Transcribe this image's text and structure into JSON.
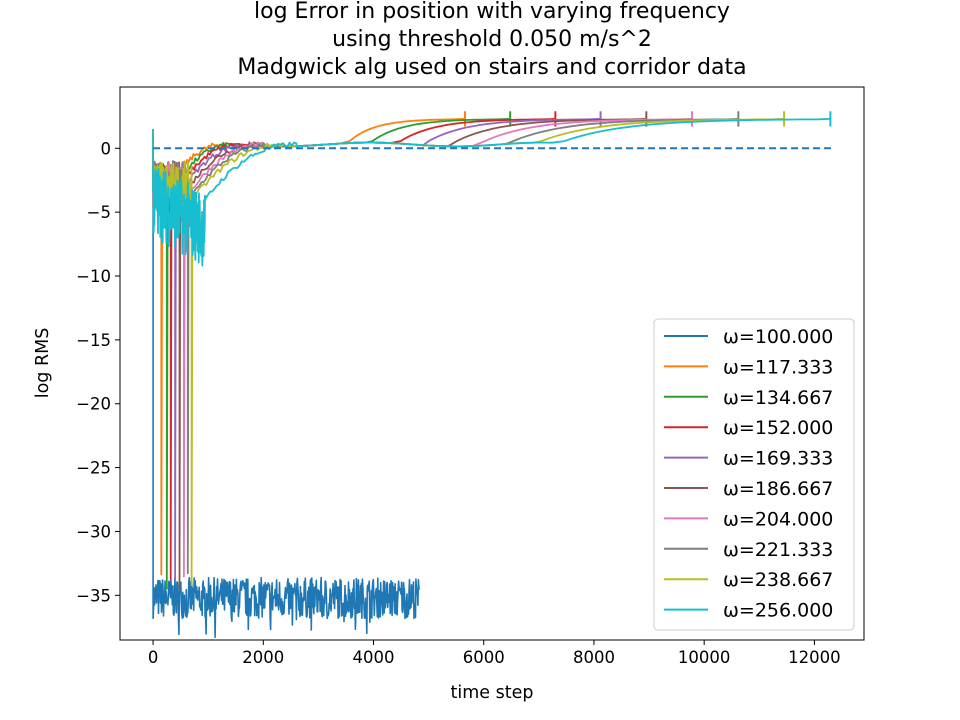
{
  "chart_data": {
    "type": "line",
    "title": [
      "log Error in position with varying frequency",
      "using threshold 0.050 m/s^2",
      "Madgwick alg used on stairs and corridor data"
    ],
    "xlabel": "time step",
    "ylabel": "log RMS",
    "xlim": [
      -600,
      12900
    ],
    "ylim": [
      -38.5,
      4.8
    ],
    "xticks": [
      0,
      2000,
      4000,
      6000,
      8000,
      10000,
      12000
    ],
    "xtick_labels": [
      "0",
      "2000",
      "4000",
      "6000",
      "8000",
      "10000",
      "12000"
    ],
    "yticks": [
      0,
      -5,
      -10,
      -15,
      -20,
      -25,
      -30,
      -35
    ],
    "ytick_labels": [
      "0",
      "−5",
      "−10",
      "−15",
      "−20",
      "−25",
      "−30",
      "−35"
    ],
    "grid": false,
    "legend_position": "lower-right",
    "reference_line": {
      "y": 0,
      "x_start": 0,
      "x_end": 12300,
      "style": "dashed",
      "color": "#1f77b4"
    },
    "series": [
      {
        "name": "ω=100.000",
        "color": "#1f77b4",
        "end_x": 4840,
        "plateau": -34,
        "noise_drop_x": 0
      },
      {
        "name": "ω=117.333",
        "color": "#ff7f0e",
        "end_x": 5660,
        "rise_x": 3500,
        "drop_x": 150,
        "recover_x": 1300
      },
      {
        "name": "ω=134.667",
        "color": "#2ca02c",
        "end_x": 6480,
        "rise_x": 3900,
        "drop_x": 250,
        "recover_x": 1450
      },
      {
        "name": "ω=152.000",
        "color": "#d62728",
        "end_x": 7300,
        "rise_x": 4400,
        "drop_x": 320,
        "recover_x": 1600
      },
      {
        "name": "ω=169.333",
        "color": "#9467bd",
        "end_x": 8120,
        "rise_x": 4900,
        "drop_x": 400,
        "recover_x": 1750
      },
      {
        "name": "ω=186.667",
        "color": "#8c564b",
        "end_x": 8950,
        "rise_x": 5400,
        "drop_x": 480,
        "recover_x": 1900
      },
      {
        "name": "ω=204.000",
        "color": "#e377c2",
        "end_x": 9780,
        "rise_x": 5900,
        "drop_x": 560,
        "recover_x": 2050
      },
      {
        "name": "ω=221.333",
        "color": "#7f7f7f",
        "end_x": 10620,
        "rise_x": 6400,
        "drop_x": 630,
        "recover_x": 2200
      },
      {
        "name": "ω=238.667",
        "color": "#bcbd22",
        "end_x": 11450,
        "rise_x": 6900,
        "drop_x": 700,
        "recover_x": 2400
      },
      {
        "name": "ω=256.000",
        "color": "#17becf",
        "end_x": 12290,
        "rise_x": 7300,
        "drop_x": 0,
        "recover_x": 2600
      }
    ],
    "final_level": 2.3,
    "mid_level": 0.3
  }
}
